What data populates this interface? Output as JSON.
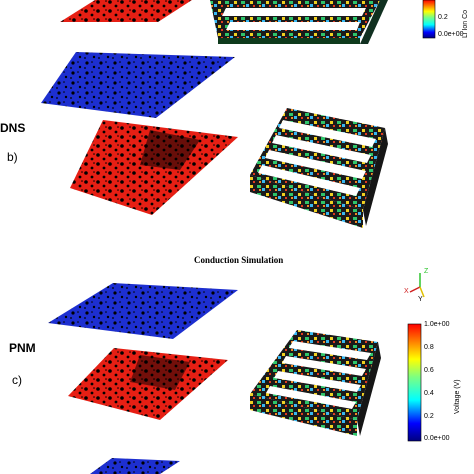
{
  "panels": {
    "dns_label": "DNS",
    "b_label": "b)",
    "pnm_label": "PNM",
    "c_label": "c)"
  },
  "section_title": "Conduction Simulation",
  "colorbar_top": {
    "ticks": [
      "0.2",
      "0.0e+00"
    ],
    "label": "Li Ion Co"
  },
  "colorbar_bottom": {
    "ticks": [
      "1.0e+00",
      "0.8",
      "0.6",
      "0.4",
      "0.2",
      "0.0e+00"
    ],
    "label": "Voltage (V)"
  },
  "axes_triad": {
    "z": "Z",
    "x": "X",
    "y": "Y"
  },
  "colors": {
    "blue": "#1d2fd0",
    "red": "#e61f14",
    "black": "#000000"
  }
}
